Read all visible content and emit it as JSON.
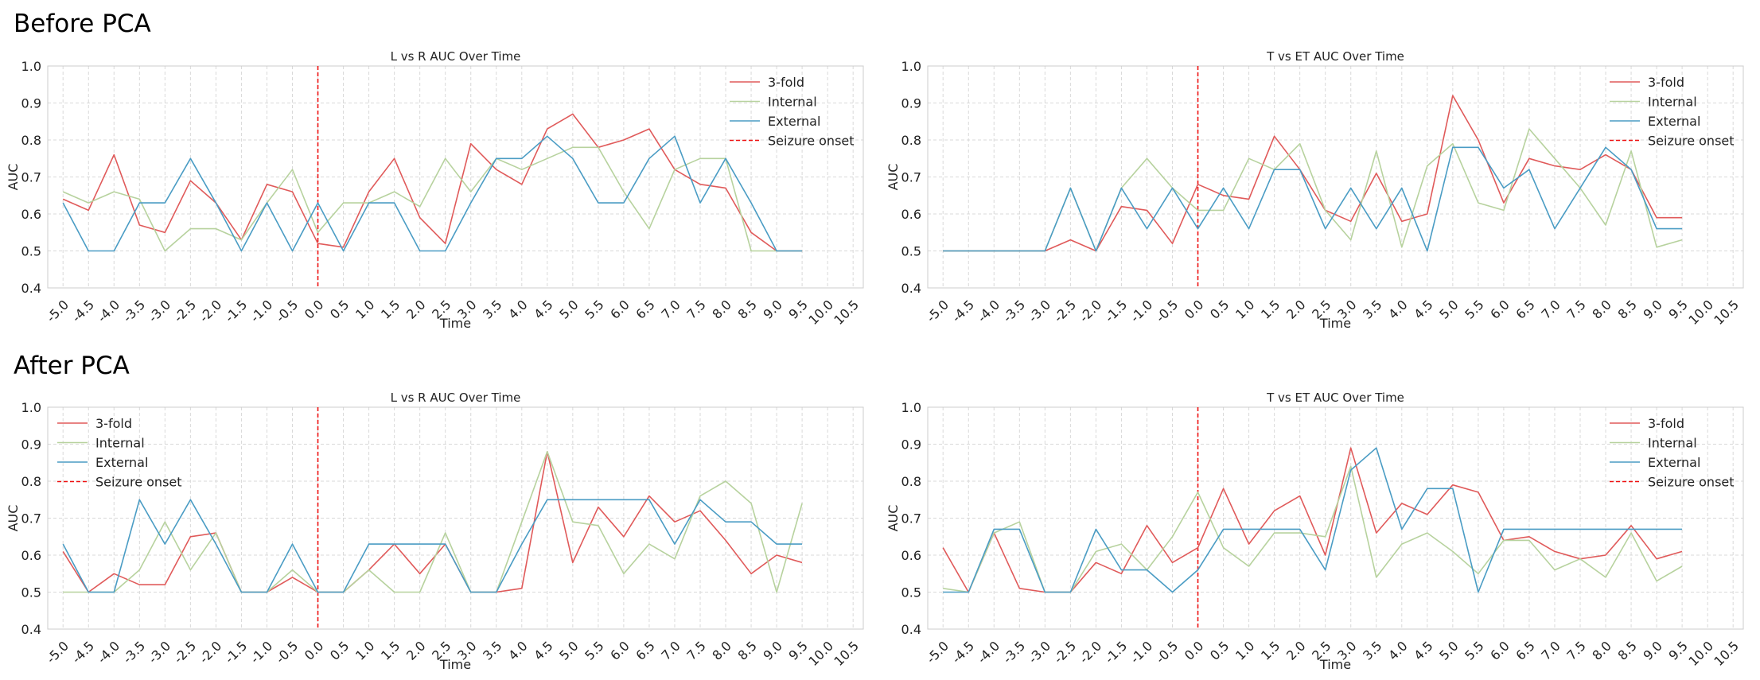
{
  "sections": {
    "before": "Before PCA",
    "after": "After PCA"
  },
  "colors": {
    "three_fold": "#e05a5a",
    "internal": "#b7d29e",
    "external": "#4a9cc4",
    "onset": "#ee1111"
  },
  "chart_data": [
    {
      "id": "before-lr",
      "section": "Before PCA",
      "type": "line",
      "title": "L vs R AUC Over Time",
      "xlabel": "Time",
      "ylabel": "AUC",
      "ylim": [
        0.4,
        1.0
      ],
      "yticks": [
        "0.4",
        "0.5",
        "0.6",
        "0.7",
        "0.8",
        "0.9",
        "1.0"
      ],
      "xlim": [
        -5.3,
        10.7
      ],
      "xticks": [
        "-5.0",
        "-4.5",
        "-4.0",
        "-3.5",
        "-3.0",
        "-2.5",
        "-2.0",
        "-1.5",
        "-1.0",
        "-0.5",
        "0.0",
        "0.5",
        "1.0",
        "1.5",
        "2.0",
        "2.5",
        "3.0",
        "3.5",
        "4.0",
        "4.5",
        "5.0",
        "5.5",
        "6.0",
        "6.5",
        "7.0",
        "7.5",
        "8.0",
        "8.5",
        "9.0",
        "9.5",
        "10.0",
        "10.5"
      ],
      "legend_position": "top-right",
      "onset_label": "Seizure onset",
      "onset_x": 0.0,
      "x": [
        -5.0,
        -4.5,
        -4.0,
        -3.5,
        -3.0,
        -2.5,
        -2.0,
        -1.5,
        -1.0,
        -0.5,
        0.0,
        0.5,
        1.0,
        1.5,
        2.0,
        2.5,
        3.0,
        3.5,
        4.0,
        4.5,
        5.0,
        5.5,
        6.0,
        6.5,
        7.0,
        7.5,
        8.0,
        8.5,
        9.0,
        9.5
      ],
      "series": [
        {
          "name": "3-fold",
          "key": "three_fold",
          "values": [
            0.64,
            0.61,
            0.76,
            0.57,
            0.55,
            0.69,
            0.63,
            0.53,
            0.68,
            0.66,
            0.52,
            0.51,
            0.66,
            0.75,
            0.59,
            0.52,
            0.79,
            0.72,
            0.68,
            0.83,
            0.87,
            0.78,
            0.8,
            0.83,
            0.72,
            0.68,
            0.67,
            0.55,
            0.5,
            0.5
          ]
        },
        {
          "name": "Internal",
          "key": "internal",
          "values": [
            0.66,
            0.63,
            0.66,
            0.64,
            0.5,
            0.56,
            0.56,
            0.53,
            0.63,
            0.72,
            0.55,
            0.63,
            0.63,
            0.66,
            0.62,
            0.75,
            0.66,
            0.75,
            0.72,
            0.75,
            0.78,
            0.78,
            0.66,
            0.56,
            0.72,
            0.75,
            0.75,
            0.5,
            0.5,
            0.5
          ]
        },
        {
          "name": "External",
          "key": "external",
          "values": [
            0.63,
            0.5,
            0.5,
            0.63,
            0.63,
            0.75,
            0.63,
            0.5,
            0.63,
            0.5,
            0.63,
            0.5,
            0.63,
            0.63,
            0.5,
            0.5,
            0.63,
            0.75,
            0.75,
            0.81,
            0.75,
            0.63,
            0.63,
            0.75,
            0.81,
            0.63,
            0.75,
            0.63,
            0.5,
            0.5
          ]
        }
      ]
    },
    {
      "id": "before-tet",
      "section": "Before PCA",
      "type": "line",
      "title": "T vs ET AUC Over Time",
      "xlabel": "Time",
      "ylabel": "AUC",
      "ylim": [
        0.4,
        1.0
      ],
      "yticks": [
        "0.4",
        "0.5",
        "0.6",
        "0.7",
        "0.8",
        "0.9",
        "1.0"
      ],
      "xlim": [
        -5.3,
        10.7
      ],
      "xticks": [
        "-5.0",
        "-4.5",
        "-4.0",
        "-3.5",
        "-3.0",
        "-2.5",
        "-2.0",
        "-1.5",
        "-1.0",
        "-0.5",
        "0.0",
        "0.5",
        "1.0",
        "1.5",
        "2.0",
        "2.5",
        "3.0",
        "3.5",
        "4.0",
        "4.5",
        "5.0",
        "5.5",
        "6.0",
        "6.5",
        "7.0",
        "7.5",
        "8.0",
        "8.5",
        "9.0",
        "9.5",
        "10.0",
        "10.5"
      ],
      "legend_position": "top-right",
      "onset_label": "Seizure onset",
      "onset_x": 0.0,
      "x": [
        -5.0,
        -4.5,
        -4.0,
        -3.5,
        -3.0,
        -2.5,
        -2.0,
        -1.5,
        -1.0,
        -0.5,
        0.0,
        0.5,
        1.0,
        1.5,
        2.0,
        2.5,
        3.0,
        3.5,
        4.0,
        4.5,
        5.0,
        5.5,
        6.0,
        6.5,
        7.0,
        7.5,
        8.0,
        8.5,
        9.0,
        9.5
      ],
      "series": [
        {
          "name": "3-fold",
          "key": "three_fold",
          "values": [
            0.5,
            0.5,
            0.5,
            0.5,
            0.5,
            0.53,
            0.5,
            0.62,
            0.61,
            0.52,
            0.68,
            0.65,
            0.64,
            0.81,
            0.72,
            0.61,
            0.58,
            0.71,
            0.58,
            0.6,
            0.92,
            0.8,
            0.63,
            0.75,
            0.73,
            0.72,
            0.76,
            0.72,
            0.59,
            0.59
          ]
        },
        {
          "name": "Internal",
          "key": "internal",
          "values": [
            0.5,
            0.5,
            0.5,
            0.5,
            0.5,
            0.67,
            0.5,
            0.67,
            0.75,
            0.67,
            0.61,
            0.61,
            0.75,
            0.72,
            0.79,
            0.61,
            0.53,
            0.77,
            0.51,
            0.73,
            0.79,
            0.63,
            0.61,
            0.83,
            0.75,
            0.67,
            0.57,
            0.77,
            0.51,
            0.53
          ]
        },
        {
          "name": "External",
          "key": "external",
          "values": [
            0.5,
            0.5,
            0.5,
            0.5,
            0.5,
            0.67,
            0.5,
            0.67,
            0.56,
            0.67,
            0.56,
            0.67,
            0.56,
            0.72,
            0.72,
            0.56,
            0.67,
            0.56,
            0.67,
            0.5,
            0.78,
            0.78,
            0.67,
            0.72,
            0.56,
            0.67,
            0.78,
            0.72,
            0.56,
            0.56
          ]
        }
      ]
    },
    {
      "id": "after-lr",
      "section": "After PCA",
      "type": "line",
      "title": "L vs R AUC Over Time",
      "xlabel": "Time",
      "ylabel": "AUC",
      "ylim": [
        0.4,
        1.0
      ],
      "yticks": [
        "0.4",
        "0.5",
        "0.6",
        "0.7",
        "0.8",
        "0.9",
        "1.0"
      ],
      "xlim": [
        -5.3,
        10.7
      ],
      "xticks": [
        "-5.0",
        "-4.5",
        "-4.0",
        "-3.5",
        "-3.0",
        "-2.5",
        "-2.0",
        "-1.5",
        "-1.0",
        "-0.5",
        "0.0",
        "0.5",
        "1.0",
        "1.5",
        "2.0",
        "2.5",
        "3.0",
        "3.5",
        "4.0",
        "4.5",
        "5.0",
        "5.5",
        "6.0",
        "6.5",
        "7.0",
        "7.5",
        "8.0",
        "8.5",
        "9.0",
        "9.5",
        "10.0",
        "10.5"
      ],
      "legend_position": "top-left",
      "onset_label": "Seizure onset",
      "onset_x": 0.0,
      "x": [
        -5.0,
        -4.5,
        -4.0,
        -3.5,
        -3.0,
        -2.5,
        -2.0,
        -1.5,
        -1.0,
        -0.5,
        0.0,
        0.5,
        1.0,
        1.5,
        2.0,
        2.5,
        3.0,
        3.5,
        4.0,
        4.5,
        5.0,
        5.5,
        6.0,
        6.5,
        7.0,
        7.5,
        8.0,
        8.5,
        9.0,
        9.5
      ],
      "series": [
        {
          "name": "3-fold",
          "key": "three_fold",
          "values": [
            0.61,
            0.5,
            0.55,
            0.52,
            0.52,
            0.65,
            0.66,
            0.5,
            0.5,
            0.54,
            0.5,
            0.5,
            0.56,
            0.63,
            0.55,
            0.63,
            0.5,
            0.5,
            0.51,
            0.88,
            0.58,
            0.73,
            0.65,
            0.76,
            0.69,
            0.72,
            0.64,
            0.55,
            0.6,
            0.58
          ]
        },
        {
          "name": "Internal",
          "key": "internal",
          "values": [
            0.5,
            0.5,
            0.5,
            0.56,
            0.69,
            0.56,
            0.66,
            0.5,
            0.5,
            0.56,
            0.5,
            0.5,
            0.56,
            0.5,
            0.5,
            0.66,
            0.5,
            0.5,
            0.69,
            0.88,
            0.69,
            0.68,
            0.55,
            0.63,
            0.59,
            0.76,
            0.8,
            0.74,
            0.5,
            0.74
          ]
        },
        {
          "name": "External",
          "key": "external",
          "values": [
            0.63,
            0.5,
            0.5,
            0.75,
            0.63,
            0.75,
            0.63,
            0.5,
            0.5,
            0.63,
            0.5,
            0.5,
            0.63,
            0.63,
            0.63,
            0.63,
            0.5,
            0.5,
            0.63,
            0.75,
            0.75,
            0.75,
            0.75,
            0.75,
            0.63,
            0.75,
            0.69,
            0.69,
            0.63,
            0.63
          ]
        }
      ]
    },
    {
      "id": "after-tet",
      "section": "After PCA",
      "type": "line",
      "title": "T vs ET AUC Over Time",
      "xlabel": "Time",
      "ylabel": "AUC",
      "ylim": [
        0.4,
        1.0
      ],
      "yticks": [
        "0.4",
        "0.5",
        "0.6",
        "0.7",
        "0.8",
        "0.9",
        "1.0"
      ],
      "xlim": [
        -5.3,
        10.7
      ],
      "xticks": [
        "-5.0",
        "-4.5",
        "-4.0",
        "-3.5",
        "-3.0",
        "-2.5",
        "-2.0",
        "-1.5",
        "-1.0",
        "-0.5",
        "0.0",
        "0.5",
        "1.0",
        "1.5",
        "2.0",
        "2.5",
        "3.0",
        "3.5",
        "4.0",
        "4.5",
        "5.0",
        "5.5",
        "6.0",
        "6.5",
        "7.0",
        "7.5",
        "8.0",
        "8.5",
        "9.0",
        "9.5",
        "10.0",
        "10.5"
      ],
      "legend_position": "top-right",
      "onset_label": "Seizure onset",
      "onset_x": 0.0,
      "x": [
        -5.0,
        -4.5,
        -4.0,
        -3.5,
        -3.0,
        -2.5,
        -2.0,
        -1.5,
        -1.0,
        -0.5,
        0.0,
        0.5,
        1.0,
        1.5,
        2.0,
        2.5,
        3.0,
        3.5,
        4.0,
        4.5,
        5.0,
        5.5,
        6.0,
        6.5,
        7.0,
        7.5,
        8.0,
        8.5,
        9.0,
        9.5
      ],
      "series": [
        {
          "name": "3-fold",
          "key": "three_fold",
          "values": [
            0.62,
            0.5,
            0.66,
            0.51,
            0.5,
            0.5,
            0.58,
            0.55,
            0.68,
            0.58,
            0.62,
            0.78,
            0.63,
            0.72,
            0.76,
            0.6,
            0.89,
            0.66,
            0.74,
            0.71,
            0.79,
            0.77,
            0.64,
            0.65,
            0.61,
            0.59,
            0.6,
            0.68,
            0.59,
            0.61
          ]
        },
        {
          "name": "Internal",
          "key": "internal",
          "values": [
            0.51,
            0.5,
            0.66,
            0.69,
            0.5,
            0.5,
            0.61,
            0.63,
            0.56,
            0.65,
            0.77,
            0.62,
            0.57,
            0.66,
            0.66,
            0.65,
            0.84,
            0.54,
            0.63,
            0.66,
            0.61,
            0.55,
            0.64,
            0.64,
            0.56,
            0.59,
            0.54,
            0.66,
            0.53,
            0.57
          ]
        },
        {
          "name": "External",
          "key": "external",
          "values": [
            0.5,
            0.5,
            0.67,
            0.67,
            0.5,
            0.5,
            0.67,
            0.56,
            0.56,
            0.5,
            0.56,
            0.67,
            0.67,
            0.67,
            0.67,
            0.56,
            0.83,
            0.89,
            0.67,
            0.78,
            0.78,
            0.5,
            0.67,
            0.67,
            0.67,
            0.67,
            0.67,
            0.67,
            0.67,
            0.67
          ]
        }
      ]
    }
  ]
}
